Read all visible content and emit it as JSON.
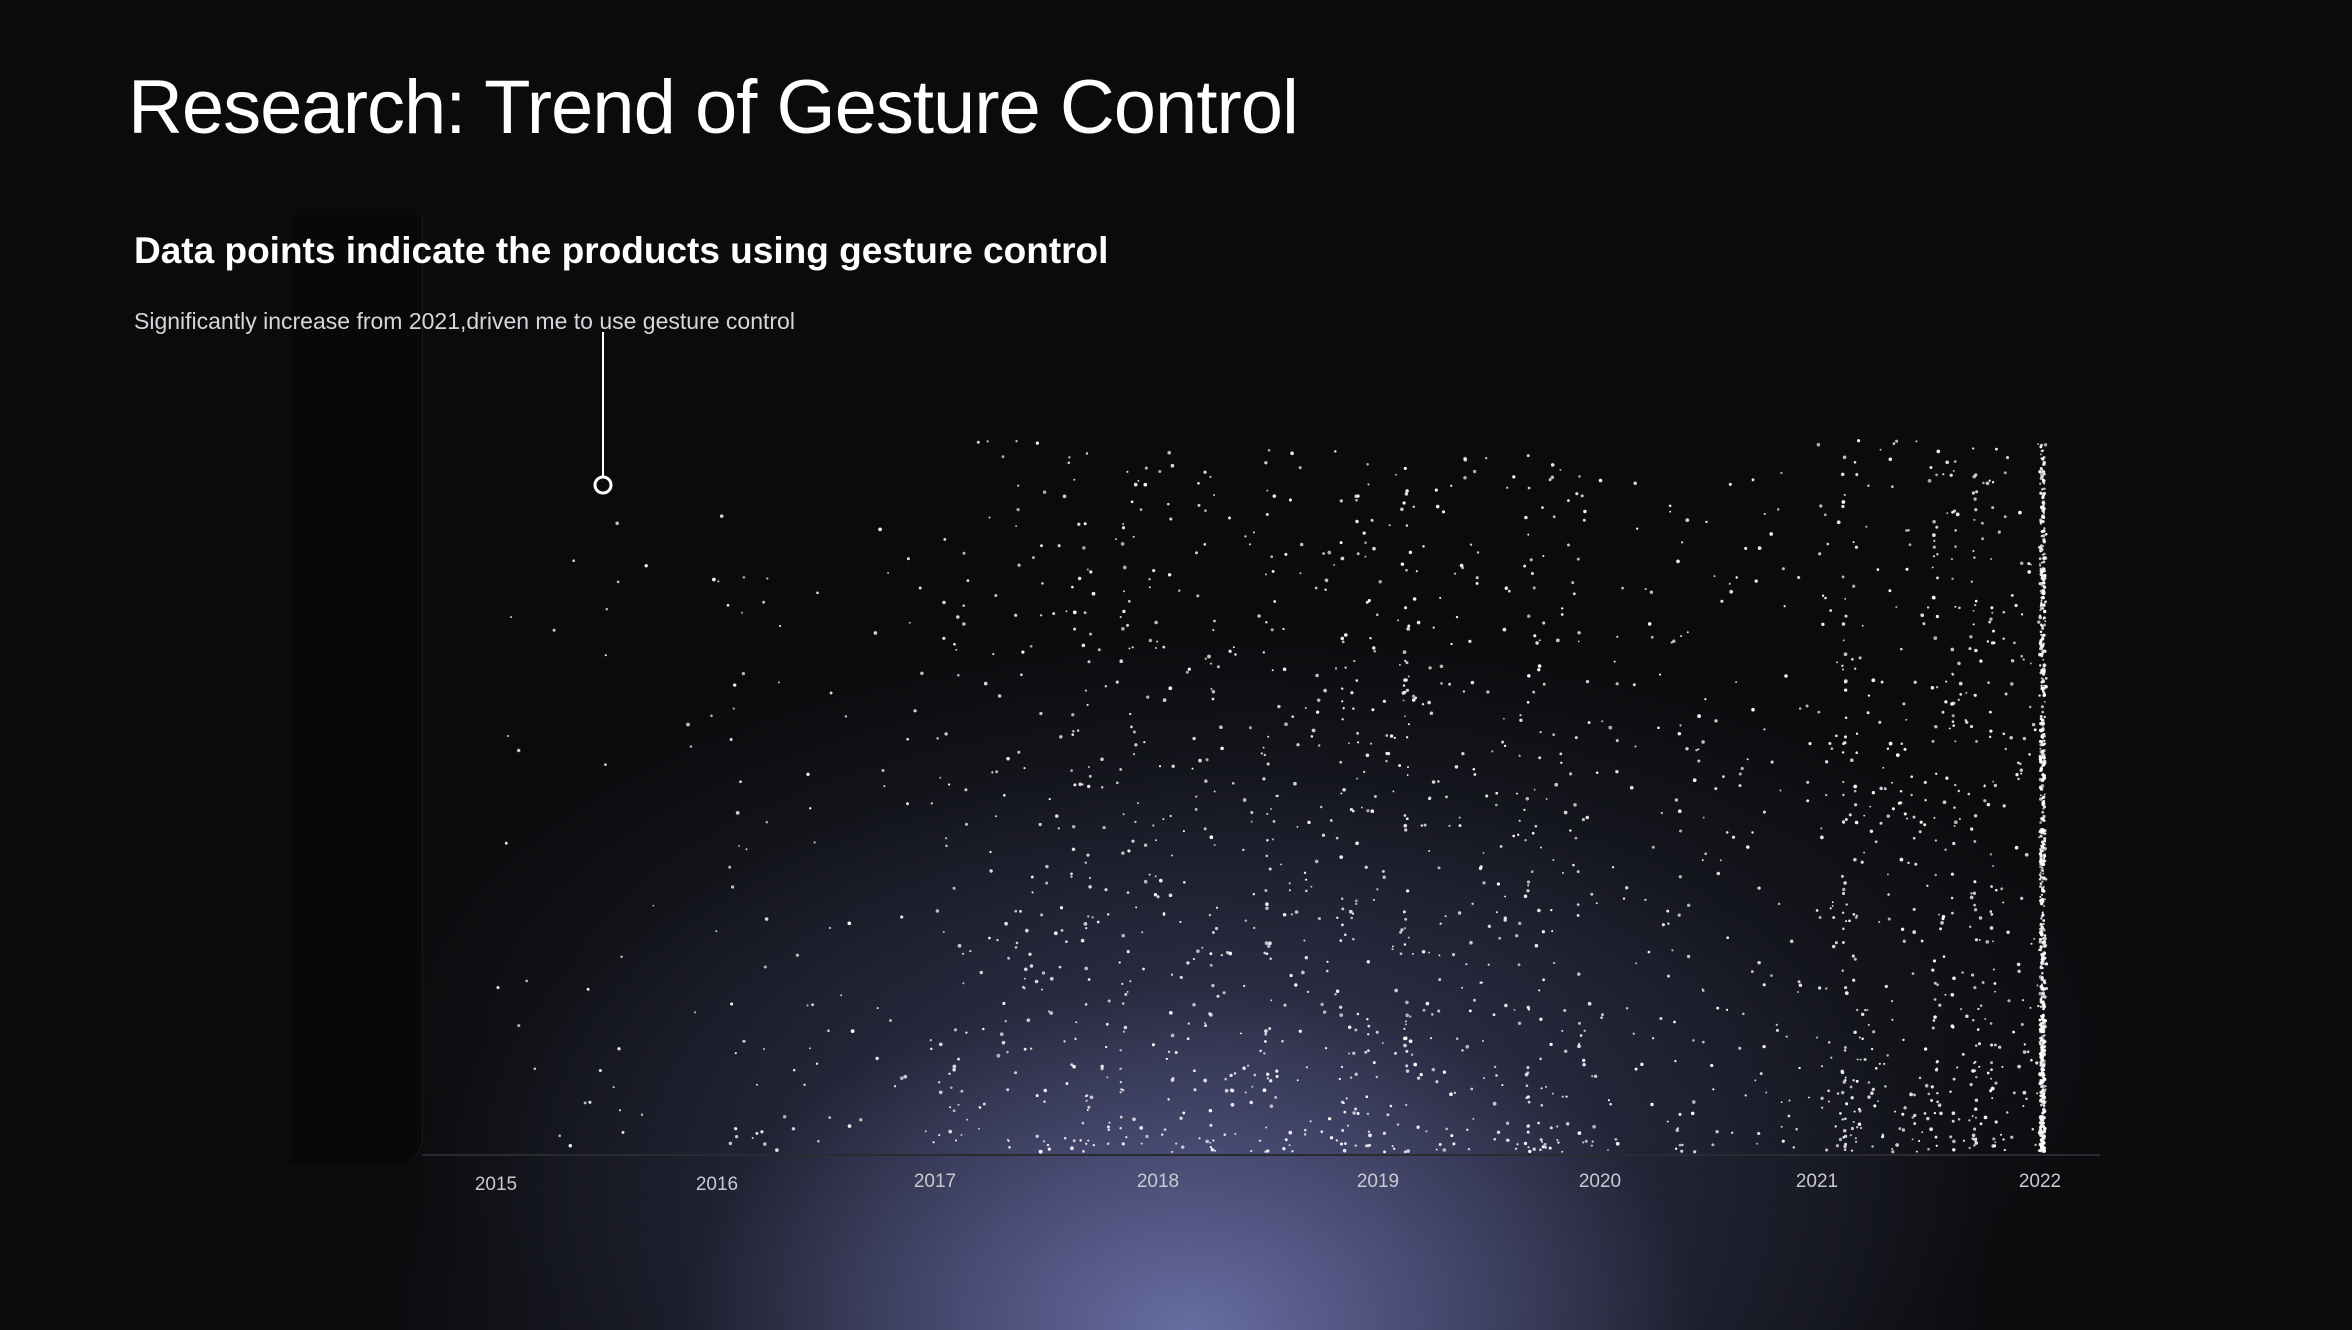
{
  "page": {
    "title": "Research: Trend of Gesture Control",
    "subtitle": "Data points indicate the products using gesture control",
    "caption": "Significantly increase from 2021,driven me to use gesture control"
  },
  "colors": {
    "background": "#0a0b0c",
    "glow": "#6c72aa",
    "points": "#ffffff"
  },
  "chart_data": {
    "type": "scatter",
    "x_ticks": [
      "2015",
      "2016",
      "2017",
      "2018",
      "2019",
      "2020",
      "2021",
      "2022"
    ],
    "xlim": [
      2015,
      2022
    ],
    "xlabel": "",
    "ylabel": "",
    "grid": false,
    "legend": "none",
    "density_by_year": [
      {
        "year": "2015",
        "relative_density": 0.05
      },
      {
        "year": "2016",
        "relative_density": 0.12
      },
      {
        "year": "2017",
        "relative_density": 0.45
      },
      {
        "year": "2018",
        "relative_density": 0.55
      },
      {
        "year": "2019",
        "relative_density": 0.55
      },
      {
        "year": "2020",
        "relative_density": 0.25
      },
      {
        "year": "2021",
        "relative_density": 0.85
      },
      {
        "year": "2022",
        "relative_density": 1.0
      }
    ],
    "annotation": {
      "text": "Significantly increase from 2021,driven me to use gesture control"
    }
  }
}
